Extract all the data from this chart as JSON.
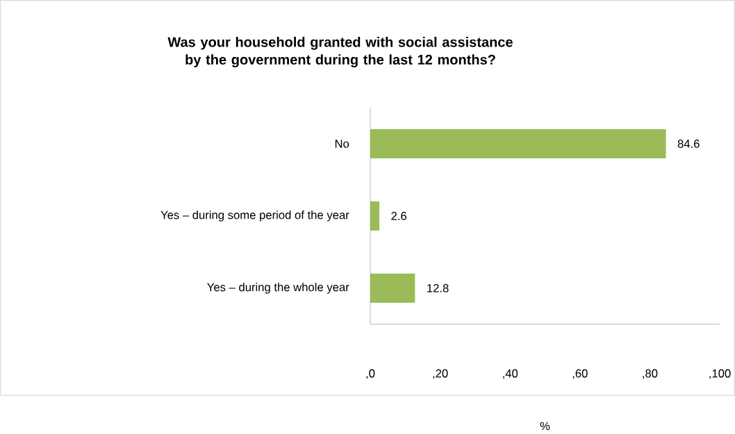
{
  "chart_data": {
    "type": "bar",
    "orientation": "horizontal",
    "title": "Was your household granted with social assistance by the government during the last 12 months?",
    "xlabel": "%",
    "categories": [
      "No",
      "Yes – during some period of the year",
      "Yes – during the whole year"
    ],
    "values": [
      84.6,
      2.6,
      12.8
    ],
    "color": "#9bbb59",
    "data_labels": true,
    "xlim": [
      0,
      100
    ],
    "xticks": [
      {
        "value": 0,
        "label": ",0"
      },
      {
        "value": 20,
        "label": ",20"
      },
      {
        "value": 40,
        "label": ",40"
      },
      {
        "value": 60,
        "label": ",60"
      },
      {
        "value": 80,
        "label": ",80"
      },
      {
        "value": 100,
        "label": ",100"
      }
    ]
  }
}
